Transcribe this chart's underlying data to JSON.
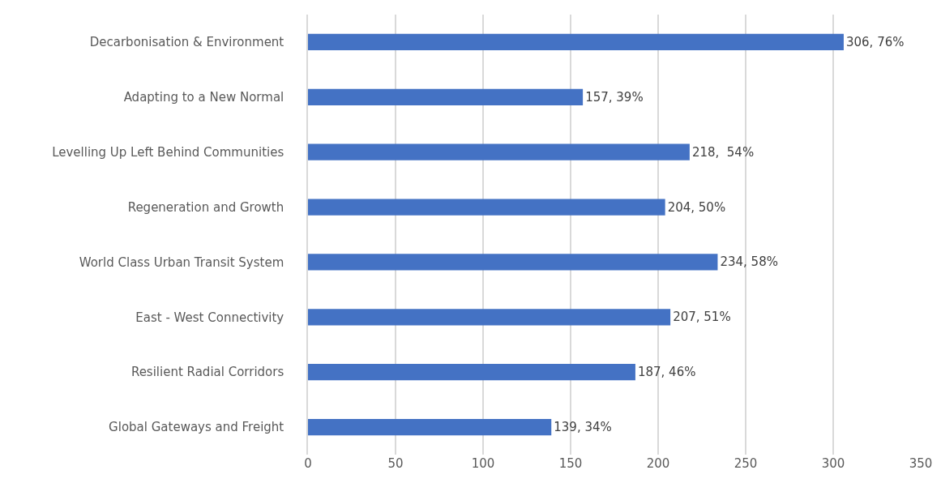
{
  "chart_data": {
    "type": "bar",
    "orientation": "horizontal",
    "categories": [
      "Decarbonisation & Environment",
      "Adapting to a New Normal",
      "Levelling Up Left Behind Communities",
      "Regeneration and Growth",
      "World Class Urban Transit System",
      "East - West Connectivity",
      "Resilient Radial Corridors",
      "Global Gateways and Freight"
    ],
    "values": [
      306,
      157,
      218,
      204,
      234,
      207,
      187,
      139
    ],
    "value_labels": [
      "306, 76%",
      "157, 39%",
      "218,  54%",
      "204, 50%",
      "234, 58%",
      "207, 51%",
      "187, 46%",
      "139, 34%"
    ],
    "color": "#4472c4",
    "xlim": [
      0,
      350
    ],
    "xticks": [
      0,
      50,
      100,
      150,
      200,
      250,
      300,
      350
    ],
    "grid": "x"
  }
}
